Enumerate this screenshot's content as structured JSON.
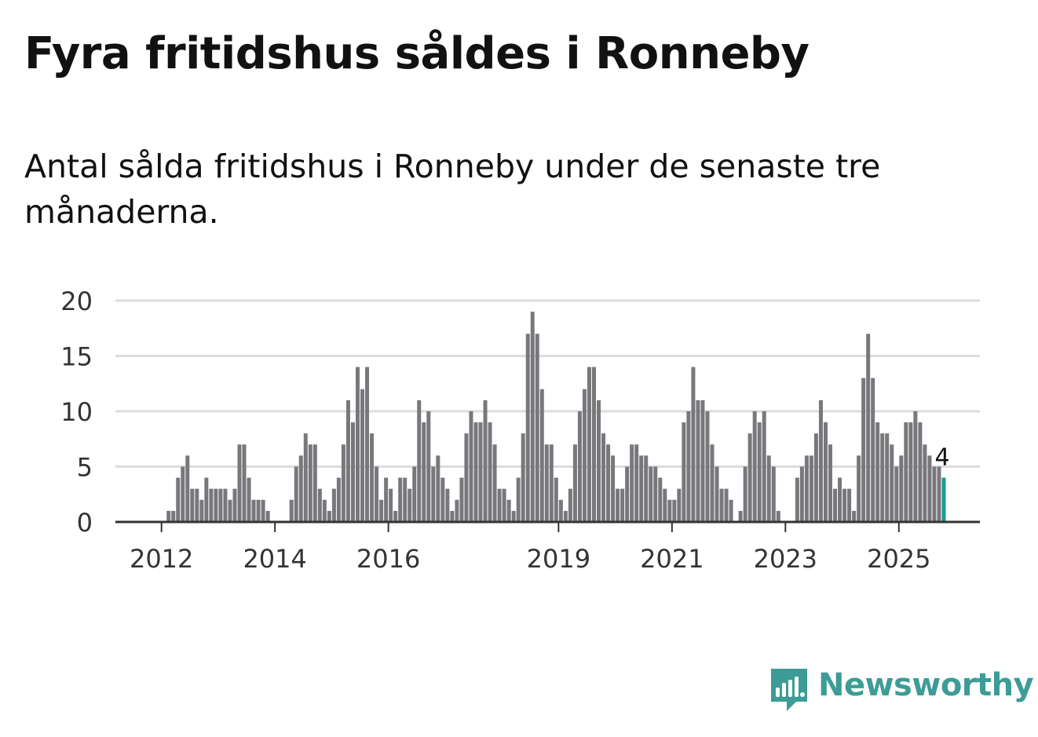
{
  "title": "Fyra fritidshus såldes i Ronneby",
  "subtitle": "Antal sålda fritidshus i Ronneby under de senaste tre månaderna.",
  "brand": {
    "name": "Newsworthy",
    "color": "#3d9c96",
    "icon": "newsworthy-logo-icon"
  },
  "chart_data": {
    "type": "bar",
    "title": "Fyra fritidshus såldes i Ronneby",
    "xlabel": "",
    "ylabel": "",
    "ylim": [
      0,
      20
    ],
    "yticks": [
      0,
      5,
      10,
      15,
      20
    ],
    "grid": true,
    "start": {
      "year": 2011,
      "month": 4
    },
    "xticks": [
      {
        "label": "2012",
        "year": 2012
      },
      {
        "label": "2014",
        "year": 2014
      },
      {
        "label": "2016",
        "year": 2016
      },
      {
        "label": "2019",
        "year": 2019
      },
      {
        "label": "2021",
        "year": 2021
      },
      {
        "label": "2023",
        "year": 2023
      },
      {
        "label": "2025",
        "year": 2025
      }
    ],
    "bar_color": "#78787c",
    "highlight_color": "#1f9a92",
    "highlight_label": "4",
    "values": [
      0,
      0,
      0,
      0,
      0,
      0,
      0,
      0,
      0,
      0,
      1,
      1,
      4,
      5,
      6,
      3,
      3,
      2,
      4,
      3,
      3,
      3,
      3,
      2,
      3,
      7,
      7,
      4,
      2,
      2,
      2,
      1,
      0,
      0,
      0,
      0,
      2,
      5,
      6,
      8,
      7,
      7,
      3,
      2,
      1,
      3,
      4,
      7,
      11,
      9,
      14,
      12,
      14,
      8,
      5,
      2,
      4,
      3,
      1,
      4,
      4,
      3,
      5,
      11,
      9,
      10,
      5,
      6,
      4,
      3,
      1,
      2,
      4,
      8,
      10,
      9,
      9,
      11,
      9,
      7,
      3,
      3,
      2,
      1,
      4,
      8,
      17,
      19,
      17,
      12,
      7,
      7,
      4,
      2,
      1,
      3,
      7,
      10,
      12,
      14,
      14,
      11,
      8,
      7,
      6,
      3,
      3,
      5,
      7,
      7,
      6,
      6,
      5,
      5,
      4,
      3,
      2,
      2,
      3,
      9,
      10,
      14,
      11,
      11,
      10,
      7,
      5,
      3,
      3,
      2,
      0,
      1,
      5,
      8,
      10,
      9,
      10,
      6,
      5,
      1,
      0,
      0,
      0,
      4,
      5,
      6,
      6,
      8,
      11,
      9,
      7,
      3,
      4,
      3,
      3,
      1,
      6,
      13,
      17,
      13,
      9,
      8,
      8,
      7,
      5,
      6,
      9,
      9,
      10,
      9,
      7,
      6,
      5,
      5,
      4
    ]
  }
}
